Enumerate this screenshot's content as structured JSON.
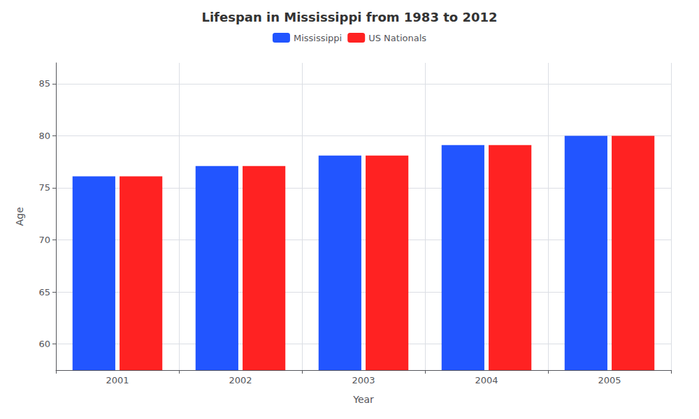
{
  "chart_data": {
    "type": "bar",
    "title": "Lifespan in Mississippi from 1983 to 2012",
    "x_label": "Year",
    "y_label": "Age",
    "categories": [
      "2001",
      "2002",
      "2003",
      "2004",
      "2005"
    ],
    "series": [
      {
        "name": "Mississippi",
        "color": "#2255ff",
        "values": [
          76.1,
          77.1,
          78.1,
          79.1,
          80.0
        ]
      },
      {
        "name": "US Nationals",
        "color": "#ff2222",
        "values": [
          76.1,
          77.1,
          78.1,
          79.1,
          80.0
        ]
      }
    ],
    "ylim": [
      57.5,
      87
    ],
    "yticks": [
      60,
      65,
      70,
      75,
      80,
      85
    ],
    "grid": true,
    "legend": "upper center"
  }
}
